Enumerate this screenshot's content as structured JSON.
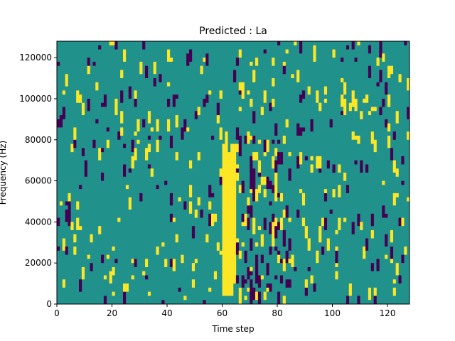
{
  "chart_data": {
    "type": "heatmap",
    "title": "Predicted : La",
    "xlabel": "Time step",
    "ylabel": "Frequency (Hz)",
    "xlim": [
      0,
      128
    ],
    "ylim": [
      0,
      128000
    ],
    "x_ticks": [
      0,
      20,
      40,
      60,
      80,
      100,
      120
    ],
    "y_ticks": [
      0,
      20000,
      40000,
      60000,
      80000,
      100000,
      120000
    ],
    "x_tick_labels": [
      "0",
      "20",
      "40",
      "60",
      "80",
      "100",
      "120"
    ],
    "y_tick_labels": [
      "0",
      "20000",
      "40000",
      "60000",
      "80000",
      "100000",
      "120000"
    ],
    "grid": false,
    "colormap": "viridis",
    "background_value": 0,
    "colors": {
      "low": "#440154",
      "mid": "#21918c",
      "high": "#fde725"
    },
    "n_time_steps": 128,
    "n_frequency_bins": 64,
    "bin_height_hz": 2000,
    "high_band": [
      {
        "t": 60,
        "f_from": 4000,
        "f_to": 78000
      },
      {
        "t": 61,
        "f_from": 4000,
        "f_to": 84000
      },
      {
        "t": 62,
        "f_from": 4000,
        "f_to": 74000
      },
      {
        "t": 63,
        "f_from": 4000,
        "f_to": 72000
      },
      {
        "t": 64,
        "f_from": 10000,
        "f_to": 78000
      }
    ],
    "low_band": [
      {
        "t": 70,
        "f_from": 56000,
        "f_to": 72000
      },
      {
        "t": 71,
        "f_from": 50000,
        "f_to": 66000
      },
      {
        "t": 72,
        "f_from": 12000,
        "f_to": 24000
      },
      {
        "t": 70,
        "f_from": 6000,
        "f_to": 12000
      }
    ],
    "seed": 7
  }
}
